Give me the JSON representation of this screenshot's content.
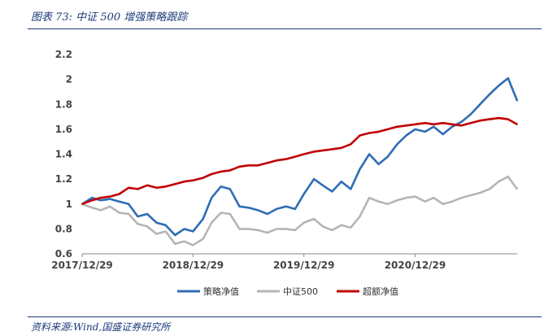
{
  "header": {
    "title": "图表 73:  中证 500 增强策略跟踪"
  },
  "footer": {
    "source": "资料来源:Wind,国盛证券研究所"
  },
  "chart_data": {
    "type": "line",
    "ylim": [
      0.6,
      2.2
    ],
    "yticks": [
      "2.2",
      "2",
      "1.8",
      "1.6",
      "1.4",
      "1.2",
      "1",
      "0.8",
      "0.6"
    ],
    "xticks": [
      "2017/12/29",
      "2018/12/29",
      "2019/12/29",
      "2020/12/29"
    ],
    "legend_position": "bottom",
    "series": [
      {
        "name": "策略净值",
        "color": "#2e6db4",
        "x": [
          "2017/12/29",
          "2018/01/31",
          "2018/02/28",
          "2018/03/31",
          "2018/04/30",
          "2018/05/31",
          "2018/06/30",
          "2018/07/31",
          "2018/08/31",
          "2018/09/30",
          "2018/10/31",
          "2018/11/30",
          "2018/12/29",
          "2019/01/31",
          "2019/02/28",
          "2019/03/31",
          "2019/04/30",
          "2019/05/31",
          "2019/06/30",
          "2019/07/31",
          "2019/08/31",
          "2019/09/30",
          "2019/10/31",
          "2019/11/30",
          "2019/12/29",
          "2020/01/31",
          "2020/02/29",
          "2020/03/31",
          "2020/04/30",
          "2020/05/31",
          "2020/06/30",
          "2020/07/31",
          "2020/08/31",
          "2020/09/30",
          "2020/10/31",
          "2020/11/30",
          "2020/12/29",
          "2021/01/31",
          "2021/02/28",
          "2021/03/31",
          "2021/04/30",
          "2021/05/31",
          "2021/06/30",
          "2021/07/31",
          "2021/08/31",
          "2021/09/30",
          "2021/10/31",
          "2021/11/30"
        ],
        "y": [
          1.0,
          1.05,
          1.03,
          1.04,
          1.02,
          1.0,
          0.9,
          0.92,
          0.85,
          0.83,
          0.75,
          0.8,
          0.78,
          0.88,
          1.05,
          1.14,
          1.12,
          0.98,
          0.97,
          0.95,
          0.92,
          0.96,
          0.98,
          0.96,
          1.08,
          1.2,
          1.15,
          1.1,
          1.18,
          1.12,
          1.28,
          1.4,
          1.32,
          1.38,
          1.48,
          1.55,
          1.6,
          1.58,
          1.62,
          1.56,
          1.62,
          1.66,
          1.72,
          1.8,
          1.88,
          1.95,
          2.01,
          1.83
        ]
      },
      {
        "name": "中证500",
        "color": "#b5b5b5",
        "x": [
          "2017/12/29",
          "2018/01/31",
          "2018/02/28",
          "2018/03/31",
          "2018/04/30",
          "2018/05/31",
          "2018/06/30",
          "2018/07/31",
          "2018/08/31",
          "2018/09/30",
          "2018/10/31",
          "2018/11/30",
          "2018/12/29",
          "2019/01/31",
          "2019/02/28",
          "2019/03/31",
          "2019/04/30",
          "2019/05/31",
          "2019/06/30",
          "2019/07/31",
          "2019/08/31",
          "2019/09/30",
          "2019/10/31",
          "2019/11/30",
          "2019/12/29",
          "2020/01/31",
          "2020/02/29",
          "2020/03/31",
          "2020/04/30",
          "2020/05/31",
          "2020/06/30",
          "2020/07/31",
          "2020/08/31",
          "2020/09/30",
          "2020/10/31",
          "2020/11/30",
          "2020/12/29",
          "2021/01/31",
          "2021/02/28",
          "2021/03/31",
          "2021/04/30",
          "2021/05/31",
          "2021/06/30",
          "2021/07/31",
          "2021/08/31",
          "2021/09/30",
          "2021/10/31",
          "2021/11/30"
        ],
        "y": [
          1.0,
          0.97,
          0.95,
          0.98,
          0.93,
          0.92,
          0.84,
          0.82,
          0.76,
          0.78,
          0.68,
          0.7,
          0.67,
          0.72,
          0.85,
          0.93,
          0.92,
          0.8,
          0.8,
          0.79,
          0.77,
          0.8,
          0.8,
          0.79,
          0.85,
          0.88,
          0.82,
          0.79,
          0.83,
          0.81,
          0.9,
          1.05,
          1.02,
          1.0,
          1.03,
          1.05,
          1.06,
          1.02,
          1.05,
          1.0,
          1.02,
          1.05,
          1.07,
          1.09,
          1.12,
          1.18,
          1.22,
          1.12
        ]
      },
      {
        "name": "超额净值",
        "color": "#c00000",
        "x": [
          "2017/12/29",
          "2018/01/31",
          "2018/02/28",
          "2018/03/31",
          "2018/04/30",
          "2018/05/31",
          "2018/06/30",
          "2018/07/31",
          "2018/08/31",
          "2018/09/30",
          "2018/10/31",
          "2018/11/30",
          "2018/12/29",
          "2019/01/31",
          "2019/02/28",
          "2019/03/31",
          "2019/04/30",
          "2019/05/31",
          "2019/06/30",
          "2019/07/31",
          "2019/08/31",
          "2019/09/30",
          "2019/10/31",
          "2019/11/30",
          "2019/12/29",
          "2020/01/31",
          "2020/02/29",
          "2020/03/31",
          "2020/04/30",
          "2020/05/31",
          "2020/06/30",
          "2020/07/31",
          "2020/08/31",
          "2020/09/30",
          "2020/10/31",
          "2020/11/30",
          "2020/12/29",
          "2021/01/31",
          "2021/02/28",
          "2021/03/31",
          "2021/04/30",
          "2021/05/31",
          "2021/06/30",
          "2021/07/31",
          "2021/08/31",
          "2021/09/30",
          "2021/10/31",
          "2021/11/30"
        ],
        "y": [
          1.0,
          1.03,
          1.05,
          1.06,
          1.08,
          1.13,
          1.12,
          1.15,
          1.13,
          1.14,
          1.16,
          1.18,
          1.19,
          1.21,
          1.24,
          1.26,
          1.27,
          1.3,
          1.31,
          1.31,
          1.33,
          1.35,
          1.36,
          1.38,
          1.4,
          1.42,
          1.43,
          1.44,
          1.45,
          1.48,
          1.55,
          1.57,
          1.58,
          1.6,
          1.62,
          1.63,
          1.64,
          1.65,
          1.64,
          1.65,
          1.64,
          1.63,
          1.65,
          1.67,
          1.68,
          1.69,
          1.68,
          1.64
        ]
      }
    ]
  }
}
